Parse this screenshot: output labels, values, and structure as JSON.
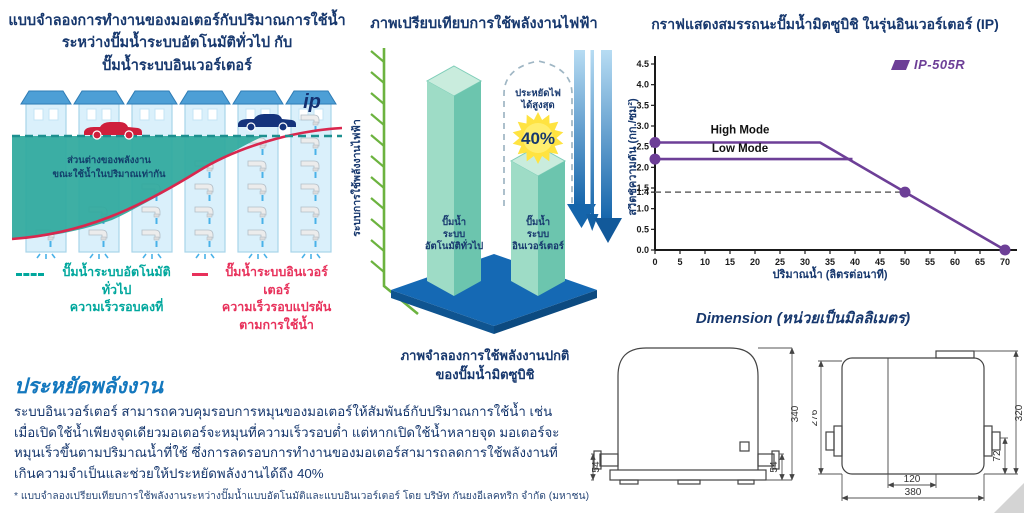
{
  "colors": {
    "navy_text": "#17386e",
    "heading_blue": "#1478be",
    "teal": "#00a79d",
    "red": "#e8315b",
    "purple": "#6d3f97",
    "green_axis": "#6cb33f",
    "platform_blue": "#1569b4",
    "burst_yellow": "#ffe341"
  },
  "left_panel": {
    "title": [
      "แบบจำลองการทำงานของมอเตอร์กับปริมาณการใช้น้ำ",
      "ระหว่างปั๊มน้ำระบบอัตโนมัติทั่วไป กับ",
      "ปั๊มน้ำระบบอินเวอร์เตอร์"
    ],
    "diagram": {
      "note1": "ส่วนต่างของพลังงาน",
      "note2": "ขณะใช้น้ำในปริมาณเท่ากัน",
      "ip_logo": "ip"
    },
    "legend": {
      "auto": {
        "line1": "ปั๊มน้ำระบบอัตโนมัติทั่วไป",
        "line2": "ความเร็วรอบคงที่"
      },
      "inverter": {
        "line1": "ปั๊มน้ำระบบอินเวอร์เตอร์",
        "line2": "ความเร็วรอบแปรผัน",
        "line3": "ตามการใช้น้ำ"
      }
    },
    "saving": {
      "heading": "ประหยัดพลังงาน",
      "body": "ระบบอินเวอร์เตอร์ สามารถควบคุมรอบการหมุนของมอเตอร์ให้สัมพันธ์กับปริมาณการใช้น้ำ เช่น เมื่อเปิดใช้น้ำเพียงจุดเดียวมอเตอร์จะหมุนที่ความเร็วรอบต่ำ แต่หากเปิดใช้น้ำหลายจุด มอเตอร์จะหมุนเร็วขึ้นตามปริมาณน้ำที่ใช้ ซึ่งการลดรอบการทำงานของมอเตอร์สามารถลดการใช้พลังงานที่เกินความจำเป็นและช่วยให้ประหยัดพลังงานได้ถึง 40%",
      "footnote": "* แบบจำลองเปรียบเทียบการใช้พลังงานระหว่างปั๊มน้ำแบบอัตโนมัติและแบบอินเวอร์เตอร์ โดย บริษัท กันยงอีเลคทริก จำกัด (มหาชน)"
    }
  },
  "middle_panel": {
    "title": "ภาพเปรียบเทียบการใช้พลังงานไฟฟ้า",
    "y_axis_label": "ระบบการใช้พลังงานไฟฟ้า",
    "badge": {
      "line1": "ประหยัดไฟ",
      "line2": "ได้สูงสุด",
      "value": "40%"
    },
    "bar1": [
      "ปั๊มน้ำ",
      "ระบบ",
      "อัตโนมัติทั่วไป"
    ],
    "bar2": [
      "ปั๊มน้ำ",
      "ระบบ",
      "อินเวอร์เตอร์"
    ],
    "caption": [
      "ภาพจำลองการใช้พลังงานปกติ",
      "ของปั๊มน้ำมิตซูบิชิ"
    ]
  },
  "right_chart": {
    "title": "กราฟแสดงสมรรถนะปั๊มน้ำมิตซูบิชิ ในรุ่นอินเวอร์เตอร์ (IP)",
    "legend_label": "IP-505R",
    "x_axis_label": "ปริมาณน้ำ (ลิตรต่อนาที)",
    "y_axis_label": "สวิตช์ความดัน (กก./ซม²)"
  },
  "dimension": {
    "title": "Dimension (หน่วยเป็นมิลลิเมตร)",
    "front": {
      "total_height": "340",
      "pipe_left": "54",
      "pipe_right": "54"
    },
    "side": {
      "body_height": "276",
      "total_height": "320",
      "pipe_height": "72",
      "pipe_spacing": "120",
      "total_width": "380"
    }
  },
  "chart_data": [
    {
      "type": "bar",
      "title": "ภาพเปรียบเทียบการใช้พลังงานไฟฟ้า",
      "ylabel": "ระบบการใช้พลังงานไฟฟ้า",
      "categories": [
        "ปั๊มน้ำระบบอัตโนมัติทั่วไป",
        "ปั๊มน้ำระบบอินเวอร์เตอร์"
      ],
      "values_relative_pct": [
        100,
        60
      ],
      "annotation": "ประหยัดไฟได้สูงสุด 40%",
      "caption": "ภาพจำลองการใช้พลังงานปกติของปั๊มน้ำมิตซูบิชิ",
      "legend_position": "none",
      "grid": false
    },
    {
      "type": "line",
      "title": "กราฟแสดงสมรรถนะปั๊มน้ำมิตซูบิชิ ในรุ่นอินเวอร์เตอร์ (IP)",
      "xlabel": "ปริมาณน้ำ (ลิตรต่อนาที)",
      "ylabel": "สวิตช์ความดัน (กก./ซม²)",
      "xlim": [
        0,
        70
      ],
      "ylim": [
        0,
        4.5
      ],
      "x_ticks": [
        0,
        5,
        10,
        15,
        20,
        25,
        30,
        35,
        40,
        45,
        50,
        55,
        60,
        65,
        70
      ],
      "y_ticks": [
        0.0,
        0.5,
        1.0,
        1.4,
        1.5,
        2.0,
        2.5,
        3.0,
        3.5,
        4.0,
        4.5
      ],
      "legend": [
        "IP-505R"
      ],
      "legend_position": "top-right",
      "grid": false,
      "accent_color": "#6d3f97",
      "series": [
        {
          "name": "High Mode",
          "points": [
            [
              0,
              2.6
            ],
            [
              33,
              2.6
            ],
            [
              50,
              1.4
            ],
            [
              70,
              0
            ]
          ],
          "label_at": [
            17,
            2.82
          ]
        },
        {
          "name": "Low Mode",
          "points": [
            [
              0,
              2.2
            ],
            [
              39.5,
              2.2
            ]
          ],
          "label_at": [
            17,
            2.37
          ]
        }
      ],
      "markers": [
        [
          0,
          2.6
        ],
        [
          0,
          2.2
        ],
        [
          50,
          1.4
        ],
        [
          70,
          0
        ]
      ],
      "dashed_guide": {
        "y": 1.4,
        "x_from": 0,
        "x_to": 50
      }
    }
  ]
}
